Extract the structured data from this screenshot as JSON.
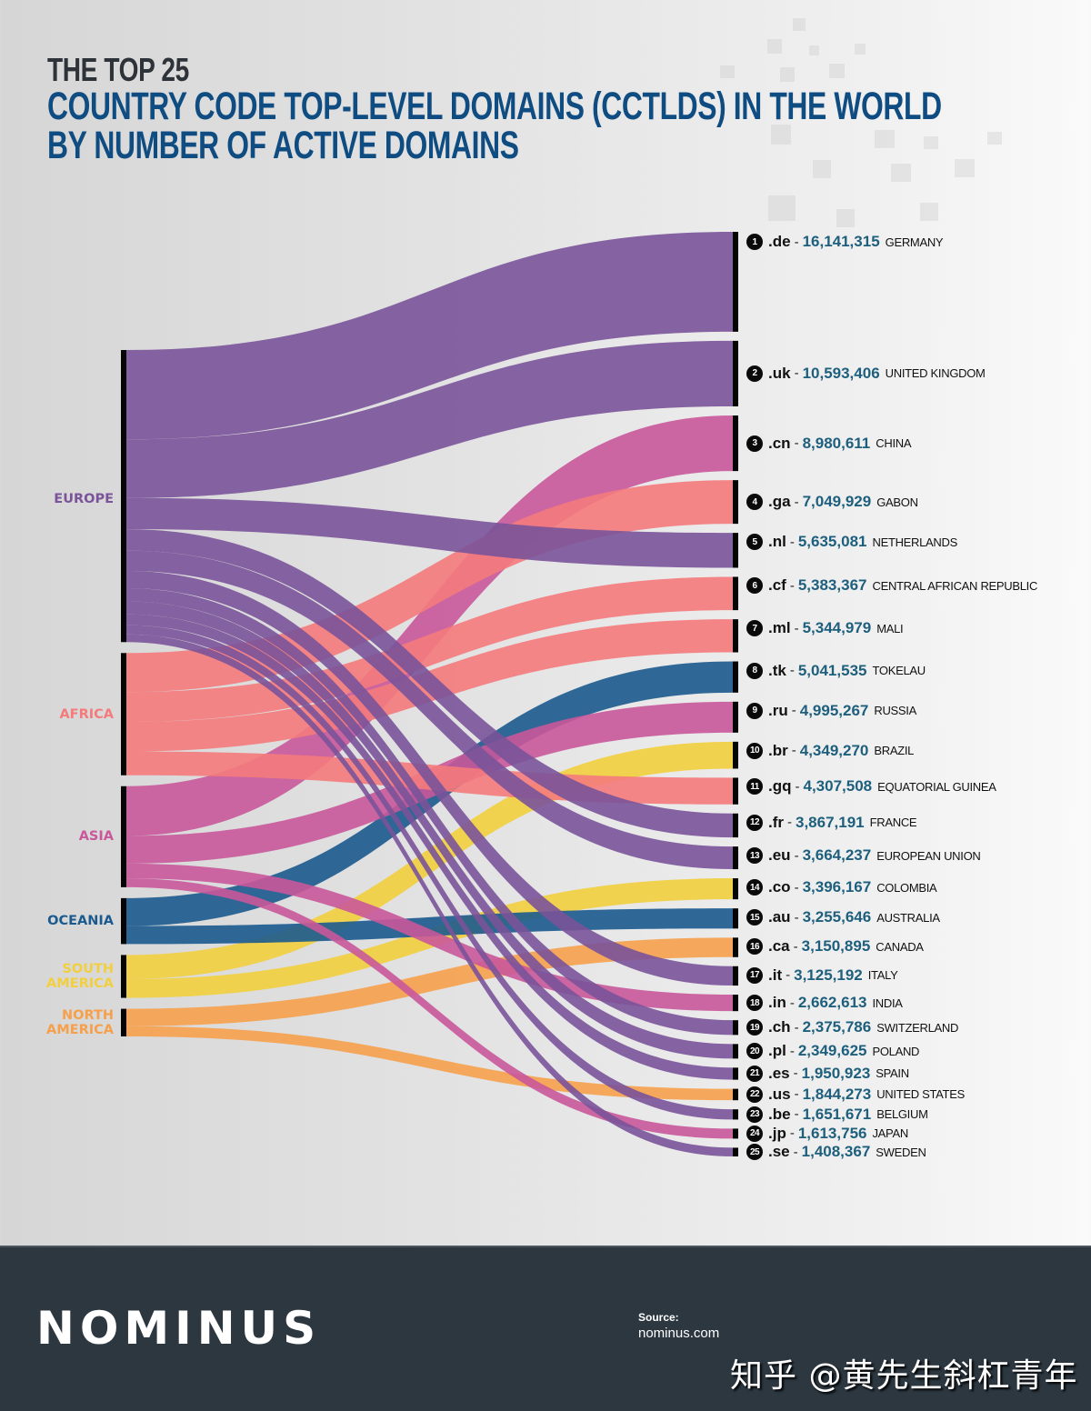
{
  "header": {
    "title_top": "THE TOP 25",
    "title_line1": "COUNTRY CODE TOP-LEVEL DOMAINS (CCTLDS) IN THE WORLD",
    "title_line2": "BY NUMBER OF ACTIVE DOMAINS"
  },
  "colors": {
    "europe": "#7a5399",
    "africa": "#f47a7c",
    "asia": "#c9589a",
    "oceania": "#1b5a8e",
    "south_america": "#f2cf3e",
    "north_america": "#f6a04b",
    "title_dark": "#2e3339",
    "title_blue": "#0f4c81",
    "count_teal": "#1d5f7d",
    "footer_bg": "#2c3740"
  },
  "chart_data": {
    "type": "sankey",
    "title": "The Top 25 Country Code Top-Level Domains (ccTLDs) in the World by Number of Active Domains",
    "regions": [
      {
        "key": "europe",
        "label": "EUROPE",
        "label_lines": [
          "EUROPE"
        ]
      },
      {
        "key": "africa",
        "label": "AFRICA",
        "label_lines": [
          "AFRICA"
        ]
      },
      {
        "key": "asia",
        "label": "ASIA",
        "label_lines": [
          "ASIA"
        ]
      },
      {
        "key": "oceania",
        "label": "OCEANIA",
        "label_lines": [
          "OCEANIA"
        ]
      },
      {
        "key": "south_america",
        "label": "SOUTH AMERICA",
        "label_lines": [
          "SOUTH",
          "AMERICA"
        ]
      },
      {
        "key": "north_america",
        "label": "NORTH AMERICA",
        "label_lines": [
          "NORTH",
          "AMERICA"
        ]
      }
    ],
    "domains": [
      {
        "rank": 1,
        "tld": ".de",
        "count": 16141315,
        "count_label": "16,141,315",
        "country": "GERMANY",
        "region": "europe"
      },
      {
        "rank": 2,
        "tld": ".uk",
        "count": 10593406,
        "count_label": "10,593,406",
        "country": "UNITED KINGDOM",
        "region": "europe"
      },
      {
        "rank": 3,
        "tld": ".cn",
        "count": 8980611,
        "count_label": "8,980,611",
        "country": "CHINA",
        "region": "asia"
      },
      {
        "rank": 4,
        "tld": ".ga",
        "count": 7049929,
        "count_label": "7,049,929",
        "country": "GABON",
        "region": "africa"
      },
      {
        "rank": 5,
        "tld": ".nl",
        "count": 5635081,
        "count_label": "5,635,081",
        "country": "NETHERLANDS",
        "region": "europe"
      },
      {
        "rank": 6,
        "tld": ".cf",
        "count": 5383367,
        "count_label": "5,383,367",
        "country": "CENTRAL AFRICAN REPUBLIC",
        "region": "africa"
      },
      {
        "rank": 7,
        "tld": ".ml",
        "count": 5344979,
        "count_label": "5,344,979",
        "country": "MALI",
        "region": "africa"
      },
      {
        "rank": 8,
        "tld": ".tk",
        "count": 5041535,
        "count_label": "5,041,535",
        "country": "TOKELAU",
        "region": "oceania"
      },
      {
        "rank": 9,
        "tld": ".ru",
        "count": 4995267,
        "count_label": "4,995,267",
        "country": "RUSSIA",
        "region": "asia"
      },
      {
        "rank": 10,
        "tld": ".br",
        "count": 4349270,
        "count_label": "4,349,270",
        "country": "BRAZIL",
        "region": "south_america"
      },
      {
        "rank": 11,
        "tld": ".gq",
        "count": 4307508,
        "count_label": "4,307,508",
        "country": "EQUATORIAL GUINEA",
        "region": "africa"
      },
      {
        "rank": 12,
        "tld": ".fr",
        "count": 3867191,
        "count_label": "3,867,191",
        "country": "FRANCE",
        "region": "europe"
      },
      {
        "rank": 13,
        "tld": ".eu",
        "count": 3664237,
        "count_label": "3,664,237",
        "country": "EUROPEAN UNION",
        "region": "europe"
      },
      {
        "rank": 14,
        "tld": ".co",
        "count": 3396167,
        "count_label": "3,396,167",
        "country": "COLOMBIA",
        "region": "south_america"
      },
      {
        "rank": 15,
        "tld": ".au",
        "count": 3255646,
        "count_label": "3,255,646",
        "country": "AUSTRALIA",
        "region": "oceania"
      },
      {
        "rank": 16,
        "tld": ".ca",
        "count": 3150895,
        "count_label": "3,150,895",
        "country": "CANADA",
        "region": "north_america"
      },
      {
        "rank": 17,
        "tld": ".it",
        "count": 3125192,
        "count_label": "3,125,192",
        "country": "ITALY",
        "region": "europe"
      },
      {
        "rank": 18,
        "tld": ".in",
        "count": 2662613,
        "count_label": "2,662,613",
        "country": "INDIA",
        "region": "asia"
      },
      {
        "rank": 19,
        "tld": ".ch",
        "count": 2375786,
        "count_label": "2,375,786",
        "country": "SWITZERLAND",
        "region": "europe"
      },
      {
        "rank": 20,
        "tld": ".pl",
        "count": 2349625,
        "count_label": "2,349,625",
        "country": "POLAND",
        "region": "europe"
      },
      {
        "rank": 21,
        "tld": ".es",
        "count": 1950923,
        "count_label": "1,950,923",
        "country": "SPAIN",
        "region": "europe"
      },
      {
        "rank": 22,
        "tld": ".us",
        "count": 1844273,
        "count_label": "1,844,273",
        "country": "UNITED STATES",
        "region": "north_america"
      },
      {
        "rank": 23,
        "tld": ".be",
        "count": 1651671,
        "count_label": "1,651,671",
        "country": "BELGIUM",
        "region": "europe"
      },
      {
        "rank": 24,
        "tld": ".jp",
        "count": 1613756,
        "count_label": "1,613,756",
        "country": "JAPAN",
        "region": "asia"
      },
      {
        "rank": 25,
        "tld": ".se",
        "count": 1408367,
        "count_label": "1,408,367",
        "country": "SWEDEN",
        "region": "europe"
      }
    ]
  },
  "footer": {
    "logo": "NOMINUS",
    "source_label": "Source:",
    "source_url": "nominus.com",
    "watermark": "知乎 @黄先生斜杠青年"
  }
}
